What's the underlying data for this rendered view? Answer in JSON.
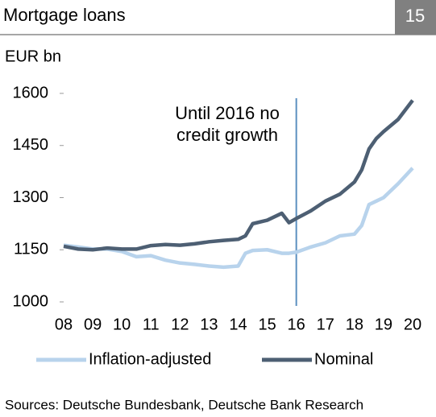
{
  "page_number": "15",
  "source": "Sources: Deutsche Bundesbank, Deutsche Bank Research",
  "chart_data": {
    "type": "line",
    "title": "Mortgage loans",
    "y_label": "EUR bn",
    "annotation": {
      "lines": [
        "Until 2016 no",
        "credit growth"
      ],
      "x": 16,
      "color": "#5b8fc0"
    },
    "x": [
      8,
      8.5,
      9,
      9.5,
      10,
      10.5,
      11,
      11.5,
      12,
      12.5,
      13,
      13.5,
      14,
      14.25,
      14.5,
      15,
      15.5,
      15.75,
      16,
      16.5,
      17,
      17.5,
      18,
      18.25,
      18.5,
      18.75,
      19,
      19.5,
      20
    ],
    "series": [
      {
        "name": "Inflation-adjusted",
        "color": "#b8d3ec",
        "values": [
          1163,
          1158,
          1152,
          1152,
          1145,
          1130,
          1133,
          1120,
          1112,
          1108,
          1103,
          1100,
          1103,
          1140,
          1148,
          1150,
          1140,
          1140,
          1143,
          1158,
          1170,
          1190,
          1195,
          1220,
          1280,
          1290,
          1300,
          1340,
          1385
        ]
      },
      {
        "name": "Nominal",
        "color": "#4d5f73",
        "values": [
          1160,
          1152,
          1150,
          1155,
          1152,
          1152,
          1162,
          1165,
          1163,
          1167,
          1173,
          1177,
          1180,
          1190,
          1225,
          1235,
          1255,
          1228,
          1240,
          1262,
          1290,
          1310,
          1345,
          1380,
          1440,
          1470,
          1490,
          1525,
          1580
        ]
      }
    ],
    "xlim": [
      8,
      20
    ],
    "xticks": [
      {
        "value": 8,
        "label": "08"
      },
      {
        "value": 9,
        "label": "09"
      },
      10,
      11,
      12,
      13,
      14,
      15,
      16,
      17,
      18,
      19,
      20
    ],
    "ylim": [
      1000,
      1600
    ],
    "yticks": [
      1000,
      1150,
      1300,
      1450,
      1600
    ],
    "grid": false,
    "legend": "bottom"
  }
}
